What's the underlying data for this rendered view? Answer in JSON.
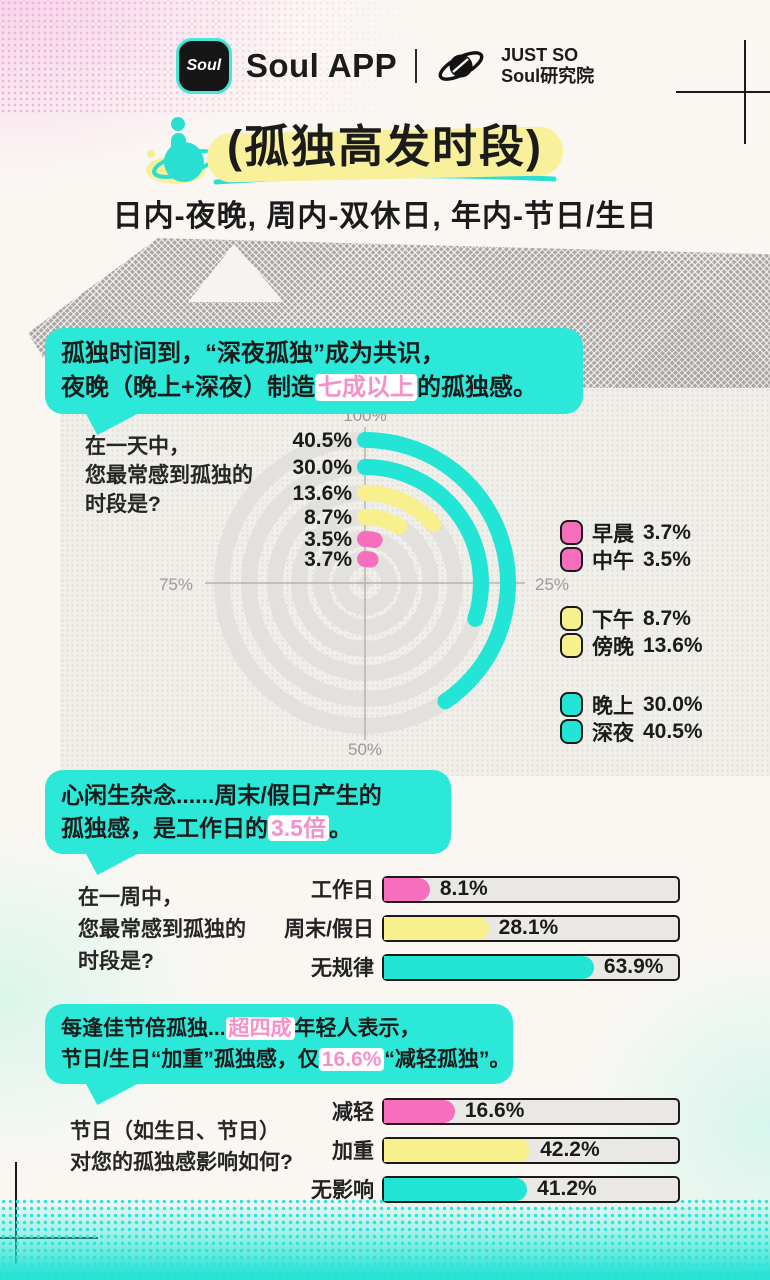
{
  "header": {
    "app_icon_text": "Soul",
    "app_name": "Soul APP",
    "org_line1": "JUST SO",
    "org_line2": "Soul研究院"
  },
  "hero": {
    "title": "(孤独高发时段)",
    "subtitle": "日内-夜晚, 周内-双休日, 年内-节日/生日"
  },
  "callouts": [
    {
      "lines": [
        [
          {
            "t": "孤独时间到，“深夜孤独”成为共识，"
          }
        ],
        [
          {
            "t": "夜晚（晚上+深夜）制造"
          },
          {
            "t": "七成以上",
            "hl": true
          },
          {
            "t": "的孤独感。"
          }
        ]
      ]
    },
    {
      "lines": [
        [
          {
            "t": "心闲生杂念......周末/假日产生的"
          }
        ],
        [
          {
            "t": "孤独感，是工作日的"
          },
          {
            "t": "3.5倍",
            "hl": true
          },
          {
            "t": "。"
          }
        ]
      ]
    },
    {
      "lines": [
        [
          {
            "t": "每逢佳节倍孤独..."
          },
          {
            "t": "超四成",
            "hl": true
          },
          {
            "t": "年轻人表示，"
          }
        ],
        [
          {
            "t": "节日/生日“加重”孤独感，仅"
          },
          {
            "t": "16.6%",
            "hl": true
          },
          {
            "t": "“减轻孤独”。"
          }
        ]
      ]
    }
  ],
  "chart_data": [
    {
      "type": "bar",
      "variant": "polar",
      "title": "在一天中，您最常感到孤独的时段是?",
      "question": "在一天中，\n您最常感到孤独的\n时段是?",
      "angle_rule": "arc sweep = value% of 360°, clockwise from top",
      "series_inner_to_outer": [
        {
          "label": "早晨",
          "value": 3.7,
          "color": "pink"
        },
        {
          "label": "中午",
          "value": 3.5,
          "color": "pink"
        },
        {
          "label": "下午",
          "value": 8.7,
          "color": "yellow"
        },
        {
          "label": "傍晚",
          "value": 13.6,
          "color": "yellow"
        },
        {
          "label": "晚上",
          "value": 30.0,
          "color": "cyan"
        },
        {
          "label": "深夜",
          "value": 40.5,
          "color": "cyan"
        }
      ],
      "value_labels_outer_to_inner": [
        "40.5%",
        "30.0%",
        "13.6%",
        "8.7%",
        "3.5%",
        "3.7%"
      ],
      "axis_ticks": [
        {
          "label": "100%",
          "pos": "top"
        },
        {
          "label": "25%",
          "pos": "right"
        },
        {
          "label": "50%",
          "pos": "bottom"
        },
        {
          "label": "75%",
          "pos": "left"
        }
      ],
      "legend_groups": [
        [
          {
            "label": "早晨",
            "value": "3.7%",
            "color": "pink"
          },
          {
            "label": "中午",
            "value": "3.5%",
            "color": "pink"
          }
        ],
        [
          {
            "label": "下午",
            "value": "8.7%",
            "color": "yellow"
          },
          {
            "label": "傍晚",
            "value": "13.6%",
            "color": "yellow"
          }
        ],
        [
          {
            "label": "晚上",
            "value": "30.0%",
            "color": "cyan"
          },
          {
            "label": "深夜",
            "value": "40.5%",
            "color": "cyan"
          }
        ]
      ]
    },
    {
      "type": "bar",
      "title": "在一周中，您最常感到孤独的时段是?",
      "question": "在一周中，\n您最常感到孤独的\n时段是?",
      "categories": [
        "工作日",
        "周末/假日",
        "无规律"
      ],
      "values": [
        8.1,
        28.1,
        63.9
      ],
      "labels": [
        "8.1%",
        "28.1%",
        "63.9%"
      ],
      "bar_colors": [
        "pink",
        "yellow",
        "cyan"
      ]
    },
    {
      "type": "bar",
      "title": "节日（如生日、节日）对您的孤独感影响如何?",
      "question": "节日（如生日、节日）\n对您的孤独感影响如何?",
      "categories": [
        "减轻",
        "加重",
        "无影响"
      ],
      "values": [
        16.6,
        42.2,
        41.2
      ],
      "labels": [
        "16.6%",
        "42.2%",
        "41.2%"
      ],
      "bar_colors": [
        "pink",
        "yellow",
        "cyan"
      ]
    }
  ],
  "colors": {
    "cyan": "#22E5D6",
    "yellow": "#F8F08D",
    "pink": "#F76FBC",
    "pink_text": "#F78FC8",
    "bubble": "#2CE8D9",
    "highlight_bg": "#FFFFFF",
    "ring": "#E3E1DD",
    "axis_line": "#B5B3B0",
    "tick_text": "#9C9A98",
    "ink": "#1B1B1B"
  }
}
